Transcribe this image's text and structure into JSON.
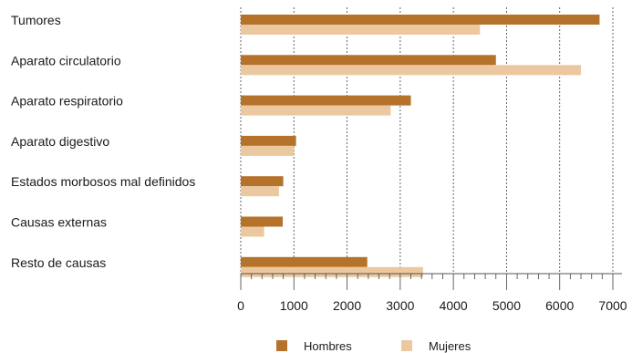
{
  "chart_data": {
    "type": "bar",
    "orientation": "horizontal",
    "categories": [
      "Tumores",
      "Aparato circulatorio",
      "Aparato respiratorio",
      "Aparato digestivo",
      "Estados morbosos mal definidos",
      "Causas externas",
      "Resto de causas"
    ],
    "series": [
      {
        "name": "Hombres",
        "color": "#b5722a",
        "values": [
          6750,
          4800,
          3200,
          1040,
          800,
          790,
          2380
        ]
      },
      {
        "name": "Mujeres",
        "color": "#ecc8a0",
        "values": [
          4500,
          6400,
          2820,
          1000,
          720,
          440,
          3430
        ]
      }
    ],
    "xlim": [
      0,
      7000
    ],
    "xticks": [
      "0",
      "1000",
      "2000",
      "3000",
      "4000",
      "5000",
      "6000",
      "7000"
    ],
    "grid": "vertical-dotted",
    "legend_position": "bottom"
  }
}
